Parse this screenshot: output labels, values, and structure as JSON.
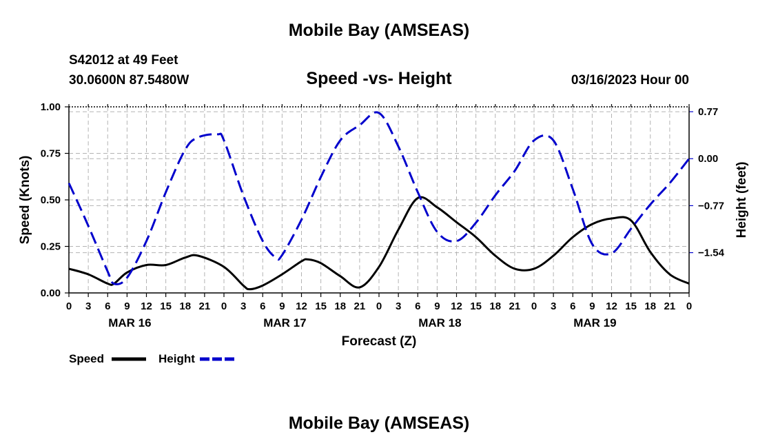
{
  "page": {
    "title": "Mobile Bay (AMSEAS)",
    "station": "S42012 at 49 Feet",
    "coords": "30.0600N  87.5480W",
    "subtitle": "Speed -vs- Height",
    "datetime": "03/16/2023 Hour 00",
    "bottom_title": "Mobile Bay (AMSEAS)"
  },
  "chart_data": {
    "type": "line",
    "xlabel": "Forecast (Z)",
    "ylabel_left": "Speed (Knots)",
    "ylabel_right": "Height (feet)",
    "x_unit": "hours since 03/16/2023 00Z",
    "xlim": [
      0,
      96
    ],
    "ylim_left": [
      0,
      1.0
    ],
    "ylim_right": [
      -2.2,
      0.85
    ],
    "left_ticks": [
      0.0,
      0.25,
      0.5,
      0.75,
      1.0
    ],
    "left_tick_labels": [
      "0.00",
      "0.25",
      "0.50",
      "0.75",
      "1.00"
    ],
    "right_ticks": [
      0.77,
      0.0,
      -0.77,
      -1.54
    ],
    "right_tick_labels": [
      "0.77",
      "0.00",
      "−0.77",
      "−1.54"
    ],
    "x_tick_labels": [
      "0",
      "3",
      "6",
      "9",
      "12",
      "15",
      "18",
      "21",
      "0",
      "3",
      "6",
      "9",
      "12",
      "15",
      "18",
      "21",
      "0",
      "3",
      "6",
      "9",
      "12",
      "15",
      "18",
      "21",
      "0",
      "3",
      "6",
      "9",
      "12",
      "15",
      "18",
      "21",
      "0"
    ],
    "day_labels": [
      {
        "label": "MAR 16",
        "x": 9
      },
      {
        "label": "MAR 17",
        "x": 33
      },
      {
        "label": "MAR 18",
        "x": 57
      },
      {
        "label": "MAR 19",
        "x": 81
      }
    ],
    "grid": true,
    "legend_position": "bottom-left",
    "colors": {
      "speed": "#000000",
      "height": "#0000cc",
      "grid": "#b3b3b3"
    },
    "series": [
      {
        "name": "Speed",
        "axis": "left",
        "style": "solid",
        "x": [
          0,
          3,
          6,
          7,
          9,
          12,
          15,
          18,
          20,
          24,
          27,
          28,
          30,
          33,
          36,
          37,
          39,
          42,
          45,
          48,
          51,
          54,
          57,
          60,
          63,
          66,
          69,
          72,
          75,
          78,
          81,
          84,
          87,
          90,
          93,
          96
        ],
        "values": [
          0.13,
          0.1,
          0.05,
          0.05,
          0.11,
          0.15,
          0.15,
          0.19,
          0.2,
          0.14,
          0.04,
          0.02,
          0.04,
          0.1,
          0.17,
          0.18,
          0.16,
          0.09,
          0.03,
          0.14,
          0.34,
          0.51,
          0.46,
          0.38,
          0.3,
          0.2,
          0.13,
          0.13,
          0.2,
          0.3,
          0.37,
          0.4,
          0.39,
          0.22,
          0.1,
          0.05
        ]
      },
      {
        "name": "Height",
        "axis": "right",
        "style": "dashed",
        "x": [
          0,
          3,
          6,
          7,
          9,
          12,
          15,
          18,
          20,
          23,
          24,
          27,
          30,
          32,
          33,
          36,
          39,
          42,
          45,
          48,
          51,
          54,
          57,
          60,
          63,
          66,
          69,
          72,
          75,
          78,
          81,
          84,
          87,
          90,
          93,
          96
        ],
        "values": [
          -0.4,
          -1.1,
          -1.85,
          -2.05,
          -1.95,
          -1.35,
          -0.55,
          0.15,
          0.35,
          0.4,
          0.3,
          -0.6,
          -1.35,
          -1.62,
          -1.58,
          -1.0,
          -0.3,
          0.3,
          0.55,
          0.75,
          0.2,
          -0.55,
          -1.2,
          -1.35,
          -1.05,
          -0.6,
          -0.2,
          0.3,
          0.3,
          -0.5,
          -1.4,
          -1.55,
          -1.15,
          -0.75,
          -0.4,
          0.0
        ]
      }
    ]
  }
}
